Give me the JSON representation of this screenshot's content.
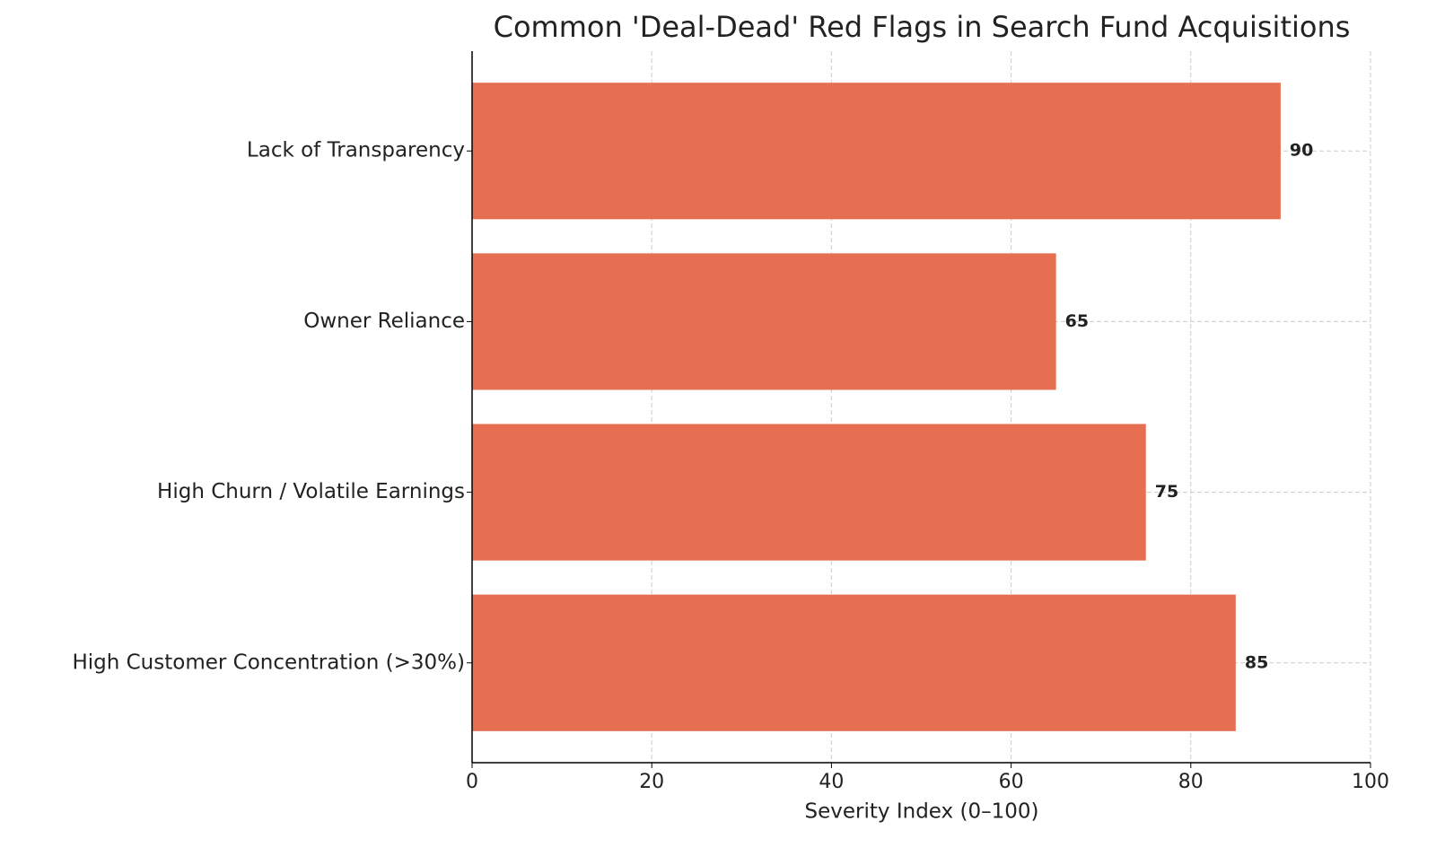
{
  "chart_data": {
    "type": "barh",
    "title": "Common 'Deal-Dead' Red Flags in Search Fund Acquisitions",
    "xlabel": "Severity Index (0–100)",
    "categories": [
      "High Customer Concentration (>30%)",
      "High Churn / Volatile Earnings",
      "Owner Reliance",
      "Lack of Transparency"
    ],
    "values": [
      85,
      75,
      65,
      90
    ],
    "color": "#e76f51",
    "xlim": [
      0,
      100
    ],
    "xticks": [
      0,
      20,
      40,
      60,
      80,
      100
    ],
    "grid": true
  }
}
